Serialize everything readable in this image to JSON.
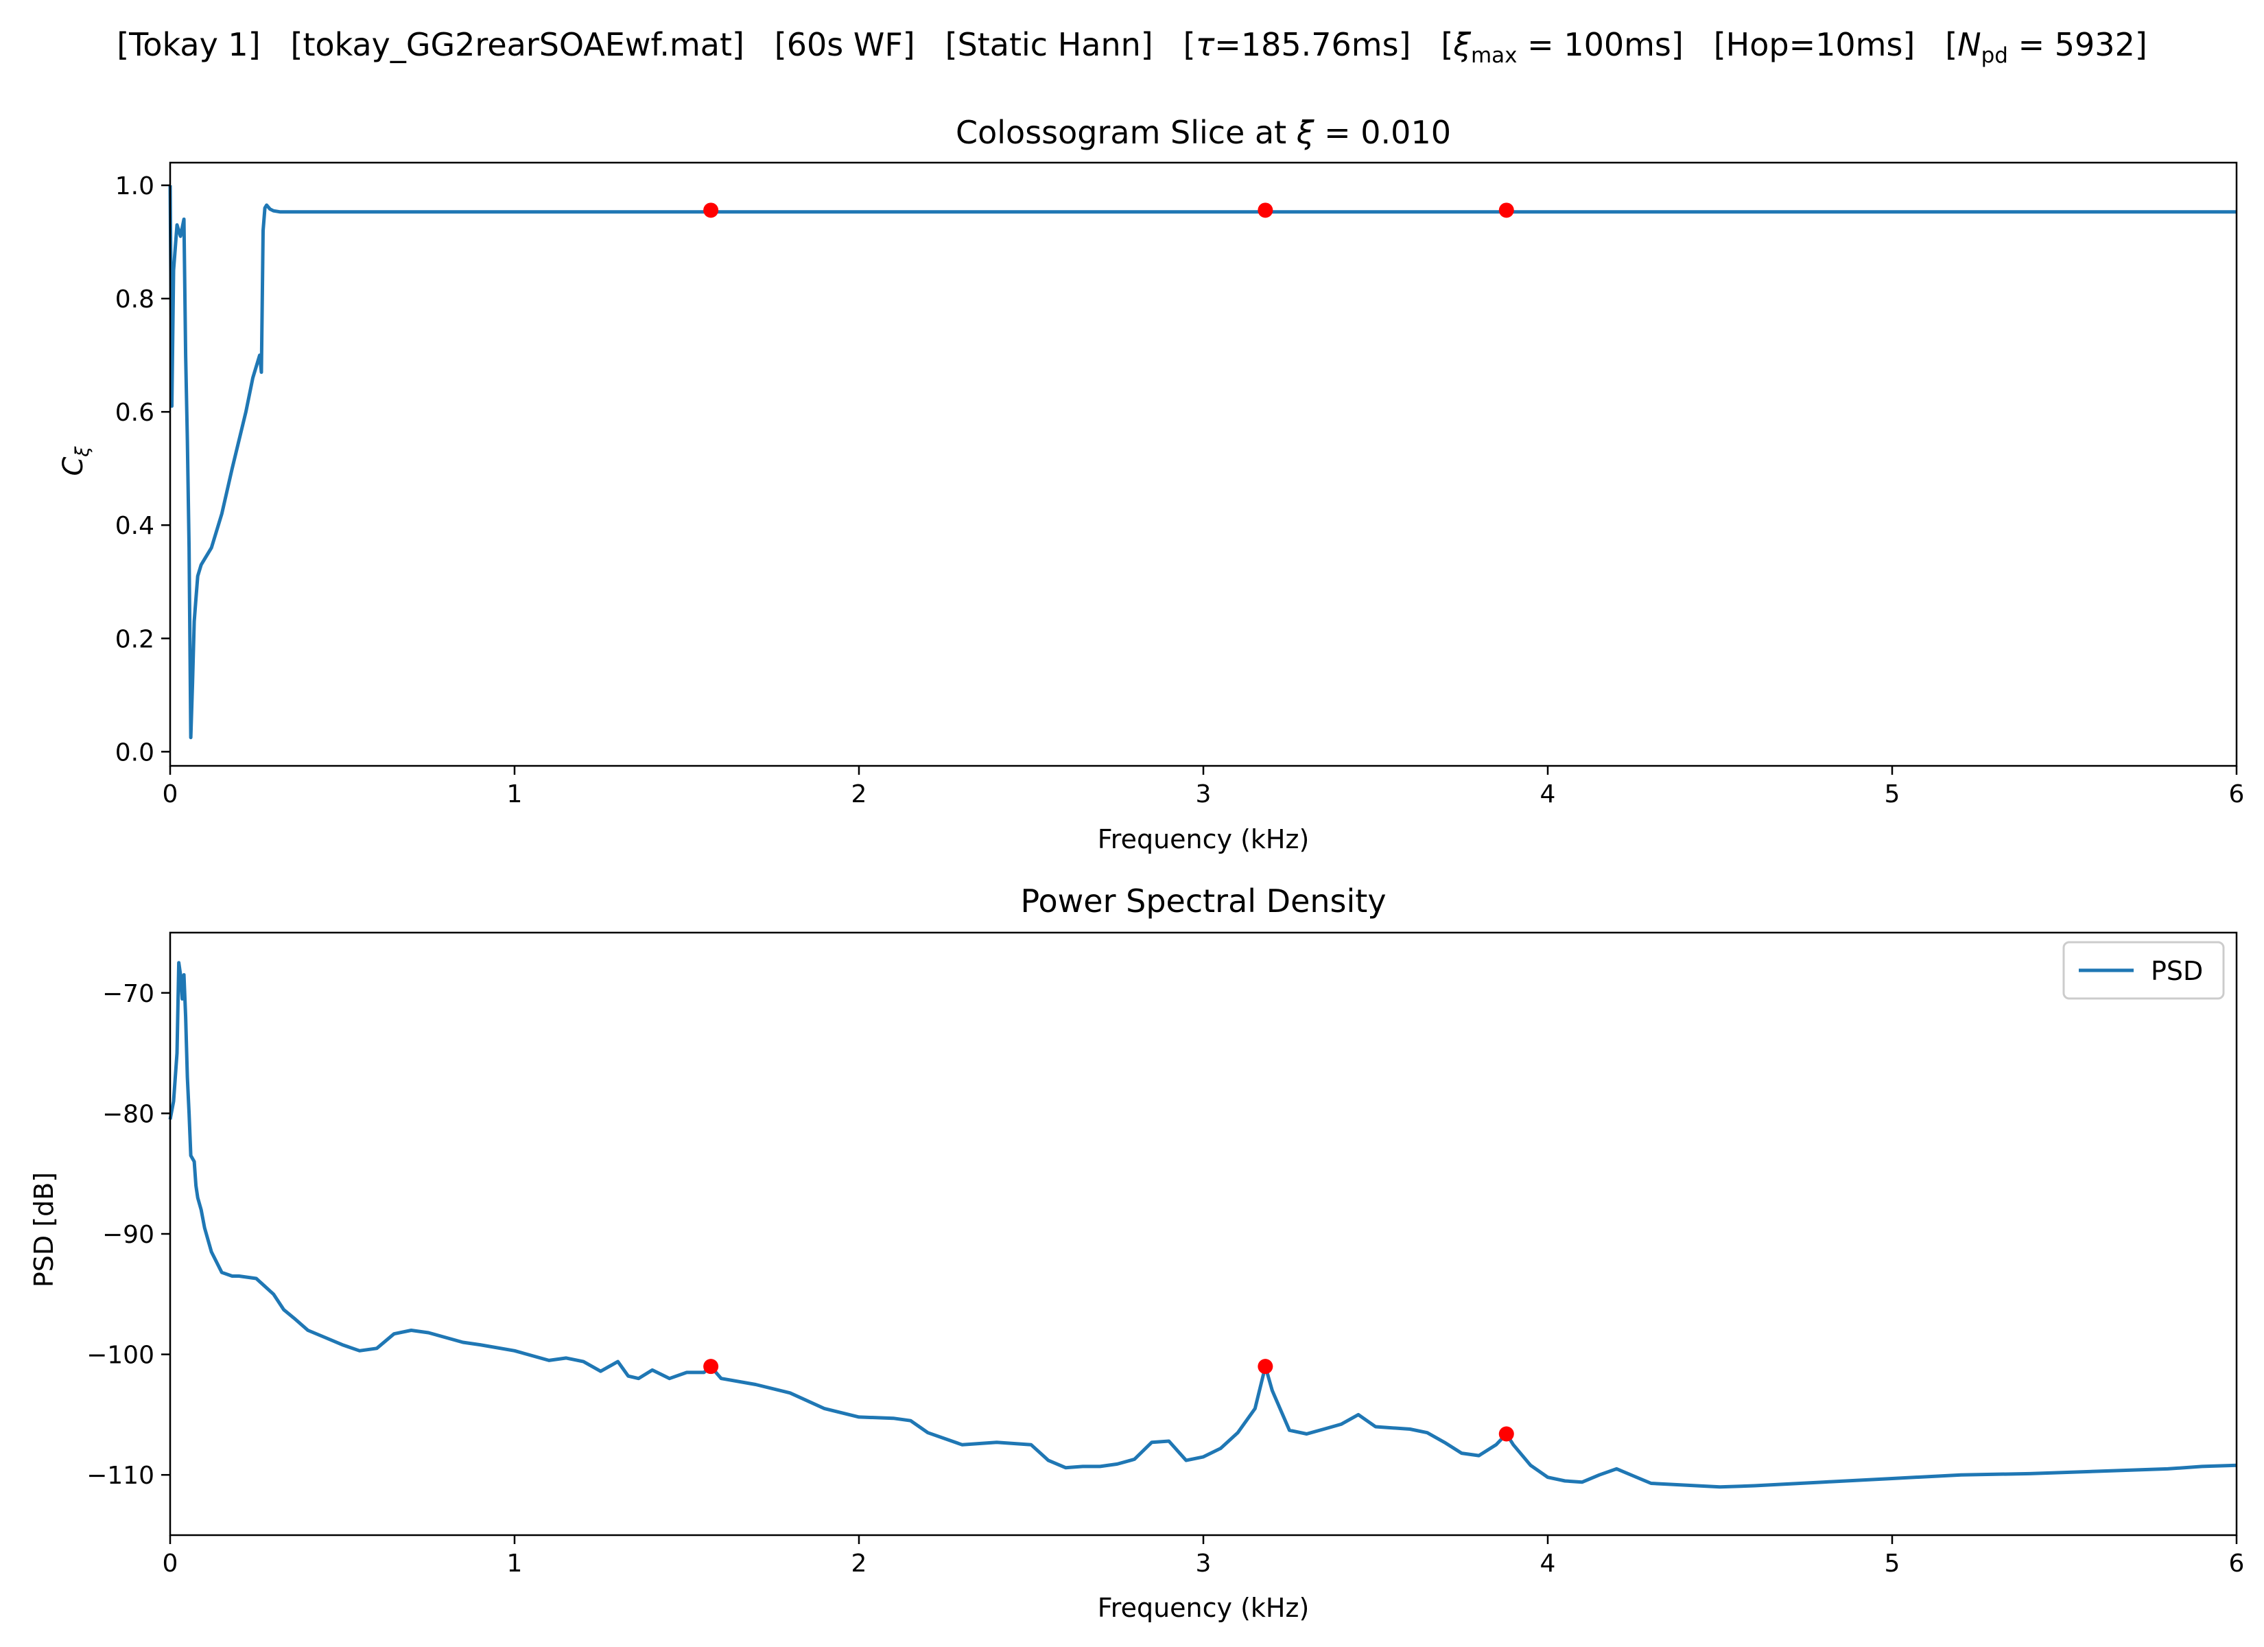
{
  "figure": {
    "suptitle_parts": {
      "p1": "[Tokay 1]   [tokay_GG2rearSOAEwf.mat]   [60s WF]   [Static Hann]   [",
      "tau_sym": "τ",
      "p2": "=185.76ms]   [",
      "xi_sym": "ξ",
      "xi_sub": "max",
      "p3": " = 100ms]   [Hop=10ms]   [",
      "n_sym": "N",
      "n_sub": "pd",
      "p4": " = 5932]"
    }
  },
  "chart_data": [
    {
      "type": "line",
      "title_prefix": "Colossogram Slice at ",
      "title_sym": "ξ",
      "title_suffix": " = 0.010",
      "xlabel": "Frequency (kHz)",
      "ylabel_main": "C",
      "ylabel_sub": "ξ",
      "xlim": [
        0,
        6
      ],
      "ylim": [
        -0.025,
        1.04
      ],
      "xticks": [
        0,
        1,
        2,
        3,
        4,
        5,
        6
      ],
      "xticklabels": [
        "0",
        "1",
        "2",
        "3",
        "4",
        "5",
        "6"
      ],
      "yticks": [
        0.0,
        0.2,
        0.4,
        0.6,
        0.8,
        1.0
      ],
      "yticklabels": [
        "0.0",
        "0.2",
        "0.4",
        "0.6",
        "0.8",
        "1.0"
      ],
      "grid": false,
      "line_color": "#1f77b4",
      "marker_color": "#ff0000",
      "series": [
        {
          "x": [
            0.0,
            0.005,
            0.01,
            0.02,
            0.03,
            0.04,
            0.045,
            0.05,
            0.055,
            0.06,
            0.065,
            0.07,
            0.075,
            0.08,
            0.09,
            0.1,
            0.12,
            0.15,
            0.18,
            0.2,
            0.22,
            0.24,
            0.26,
            0.265,
            0.27,
            0.275,
            0.28,
            0.29,
            0.3,
            0.32,
            0.5,
            1.0,
            1.5,
            2.0,
            2.5,
            3.0,
            3.5,
            4.0,
            4.5,
            5.0,
            5.5,
            6.0
          ],
          "y": [
            1.0,
            0.61,
            0.85,
            0.93,
            0.91,
            0.94,
            0.7,
            0.55,
            0.36,
            0.025,
            0.12,
            0.23,
            0.27,
            0.31,
            0.33,
            0.34,
            0.36,
            0.42,
            0.5,
            0.55,
            0.6,
            0.66,
            0.7,
            0.67,
            0.92,
            0.96,
            0.965,
            0.958,
            0.955,
            0.953,
            0.953,
            0.953,
            0.953,
            0.953,
            0.953,
            0.953,
            0.953,
            0.953,
            0.953,
            0.953,
            0.953,
            0.953
          ]
        }
      ],
      "peaks": {
        "x": [
          1.57,
          3.18,
          3.88
        ],
        "y": [
          0.956,
          0.956,
          0.956
        ]
      }
    },
    {
      "type": "line",
      "title": "Power Spectral Density",
      "xlabel": "Frequency (kHz)",
      "ylabel": "PSD [dB]",
      "xlim": [
        0,
        6
      ],
      "ylim": [
        -115,
        -65
      ],
      "xticks": [
        0,
        1,
        2,
        3,
        4,
        5,
        6
      ],
      "xticklabels": [
        "0",
        "1",
        "2",
        "3",
        "4",
        "5",
        "6"
      ],
      "yticks": [
        -70,
        -80,
        -90,
        -100,
        -110
      ],
      "yticklabels": [
        "−70",
        "−80",
        "−90",
        "−100",
        "−110"
      ],
      "grid": false,
      "legend_position": "top-right",
      "line_color": "#1f77b4",
      "marker_color": "#ff0000",
      "series": [
        {
          "name": "PSD",
          "x": [
            0.0,
            0.01,
            0.02,
            0.025,
            0.03,
            0.035,
            0.04,
            0.045,
            0.05,
            0.055,
            0.06,
            0.07,
            0.075,
            0.08,
            0.09,
            0.1,
            0.12,
            0.15,
            0.18,
            0.2,
            0.25,
            0.3,
            0.33,
            0.36,
            0.4,
            0.45,
            0.5,
            0.55,
            0.6,
            0.65,
            0.7,
            0.75,
            0.8,
            0.85,
            0.9,
            1.0,
            1.1,
            1.15,
            1.2,
            1.25,
            1.3,
            1.33,
            1.36,
            1.4,
            1.45,
            1.5,
            1.55,
            1.57,
            1.6,
            1.7,
            1.8,
            1.9,
            2.0,
            2.1,
            2.15,
            2.2,
            2.3,
            2.4,
            2.5,
            2.55,
            2.6,
            2.65,
            2.7,
            2.75,
            2.8,
            2.85,
            2.9,
            2.95,
            3.0,
            3.05,
            3.1,
            3.15,
            3.18,
            3.2,
            3.25,
            3.3,
            3.35,
            3.4,
            3.45,
            3.5,
            3.6,
            3.65,
            3.7,
            3.75,
            3.8,
            3.85,
            3.88,
            3.9,
            3.95,
            4.0,
            4.05,
            4.1,
            4.15,
            4.2,
            4.25,
            4.3,
            4.5,
            4.6,
            4.8,
            5.0,
            5.2,
            5.4,
            5.6,
            5.8,
            5.9,
            6.0
          ],
          "y": [
            -80.5,
            -79.0,
            -75.0,
            -67.5,
            -68.5,
            -70.5,
            -68.5,
            -72.0,
            -77.0,
            -80.0,
            -83.5,
            -84.0,
            -86.0,
            -87.0,
            -88.0,
            -89.5,
            -91.5,
            -93.2,
            -93.5,
            -93.5,
            -93.7,
            -95.0,
            -96.3,
            -97.0,
            -98.0,
            -98.6,
            -99.2,
            -99.7,
            -99.5,
            -98.3,
            -98.0,
            -98.2,
            -98.6,
            -99.0,
            -99.2,
            -99.7,
            -100.5,
            -100.3,
            -100.6,
            -101.4,
            -100.6,
            -101.8,
            -102.0,
            -101.3,
            -102.0,
            -101.5,
            -101.5,
            -101.0,
            -102.0,
            -102.5,
            -103.2,
            -104.5,
            -105.2,
            -105.3,
            -105.5,
            -106.5,
            -107.5,
            -107.3,
            -107.5,
            -108.8,
            -109.4,
            -109.3,
            -109.3,
            -109.1,
            -108.7,
            -107.3,
            -107.2,
            -108.8,
            -108.5,
            -107.8,
            -106.5,
            -104.5,
            -101.0,
            -103.0,
            -106.3,
            -106.6,
            -106.2,
            -105.8,
            -105.0,
            -106.0,
            -106.2,
            -106.5,
            -107.3,
            -108.2,
            -108.4,
            -107.5,
            -106.6,
            -107.5,
            -109.2,
            -110.2,
            -110.5,
            -110.6,
            -110.0,
            -109.5,
            -110.1,
            -110.7,
            -111.0,
            -110.9,
            -110.6,
            -110.3,
            -110.0,
            -109.9,
            -109.7,
            -109.5,
            -109.3,
            -109.2
          ]
        }
      ],
      "peaks": {
        "x": [
          1.57,
          3.18,
          3.88
        ],
        "y": [
          -101.0,
          -101.0,
          -106.6
        ]
      }
    }
  ]
}
